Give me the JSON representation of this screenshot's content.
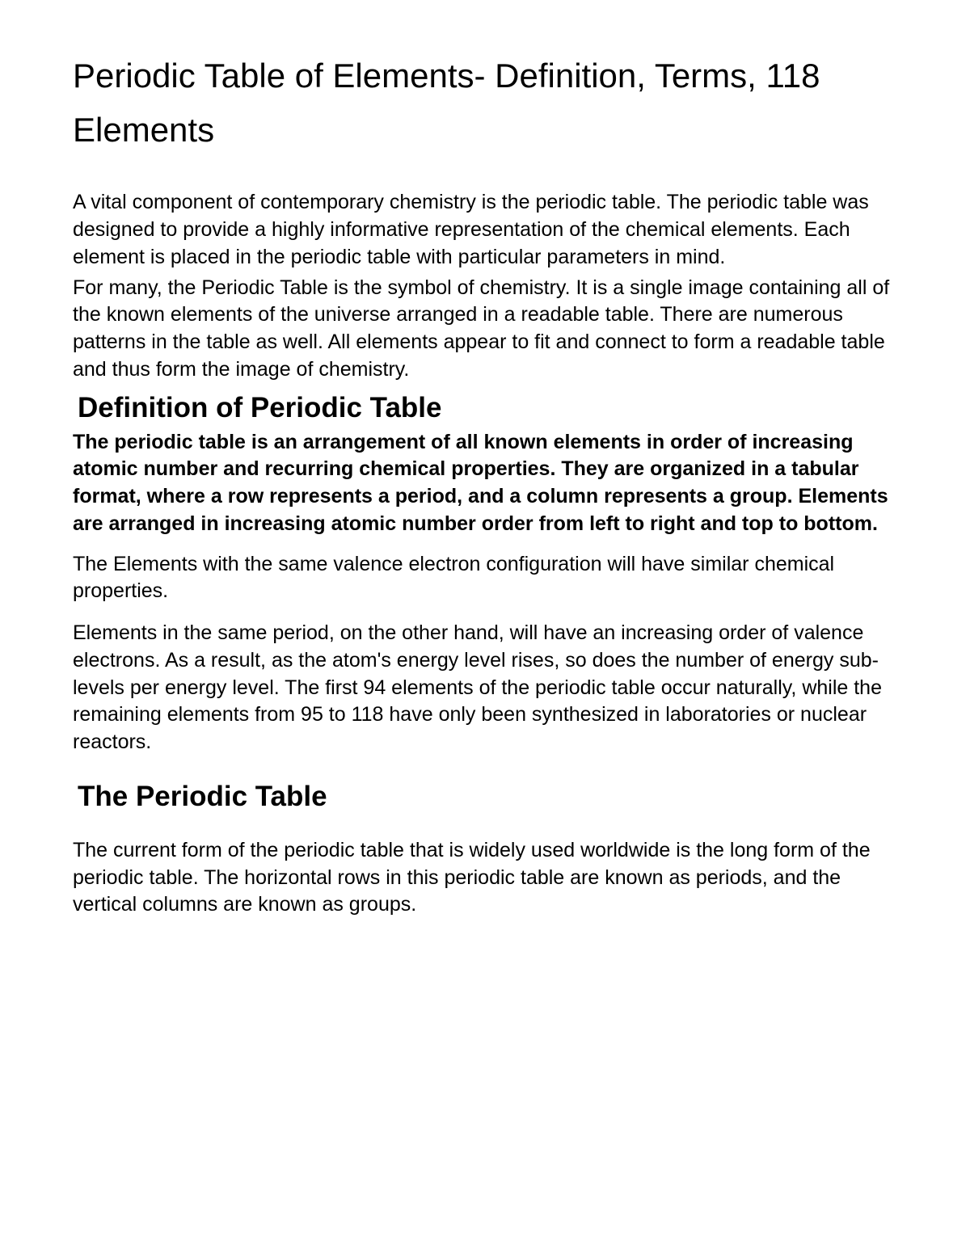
{
  "title": "Periodic Table of Elements- Definition, Terms, 118 Elements",
  "intro_p1": " A vital component of contemporary chemistry is the periodic table. The periodic table was designed to provide a highly informative representation of the chemical elements. Each element is placed in the periodic table with particular parameters in mind.",
  "intro_p2": "For many, the Periodic Table is the symbol of chemistry. It is a single image containing all of the known elements of the universe arranged in a readable table. There are numerous patterns in the table as well. All elements appear to fit and connect to form a readable table and thus form the image of chemistry.",
  "section1_heading": "Definition of Periodic Table",
  "section1_bold": "The periodic table is an arrangement of all known elements in order of increasing atomic number and recurring chemical properties. They are organized in a tabular format, where a row represents a period, and a column represents a group. Elements are arranged in increasing atomic number order from left to right and top to bottom.",
  "section1_p1": "The Elements with the same valence electron configuration will have similar chemical properties.",
  "section1_p2": "Elements in the same period, on the other hand, will have an increasing order of valence electrons. As a result, as the atom's energy level rises, so does the number of energy sub-levels per energy level. The first 94 elements of the periodic table occur naturally, while the remaining elements from 95 to 118 have only been synthesized in laboratories or nuclear reactors.",
  "section2_heading": "The Periodic Table",
  "section2_p1": "The current form of the periodic table that is widely used worldwide is the long form of the periodic table. The horizontal rows in this periodic table are known as periods, and the vertical columns are known as groups.",
  "colors": {
    "text": "#000000",
    "background": "#ffffff"
  },
  "typography": {
    "title_fontsize": 42,
    "heading_fontsize": 35,
    "body_fontsize": 25,
    "font_family": "Arial"
  }
}
